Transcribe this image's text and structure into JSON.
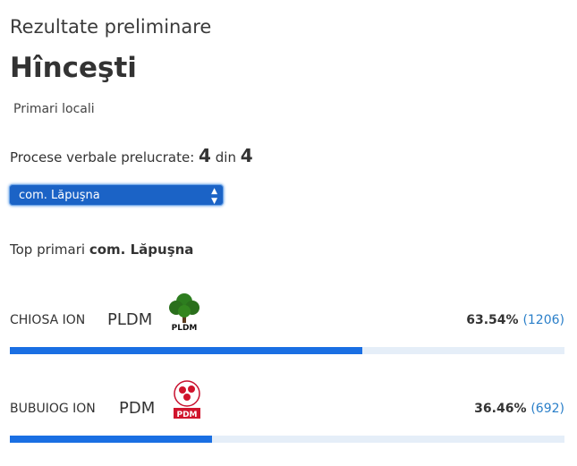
{
  "header": {
    "subtitle": "Rezultate preliminare",
    "title": "Hînceşti",
    "election": "Primari locali"
  },
  "progress": {
    "label": "Procese verbale prelucrate:",
    "processed": 4,
    "separator": "din",
    "total": 4
  },
  "select": {
    "selected": "com. Lăpuşna"
  },
  "top": {
    "label": "Top primari",
    "locality": "com. Lăpuşna"
  },
  "results": {
    "xlim": [
      0,
      100
    ],
    "bar_color": "#1a6fe3",
    "track_color": "#e5eef8",
    "candidates": [
      {
        "name": "CHIOSA ION",
        "party": "PLDM",
        "percent": 63.54,
        "percent_label": "63.54%",
        "votes_label": "(1206)"
      },
      {
        "name": "BUBUIOG ION",
        "party": "PDM",
        "percent": 36.46,
        "percent_label": "36.46%",
        "votes_label": "(692)"
      }
    ]
  }
}
